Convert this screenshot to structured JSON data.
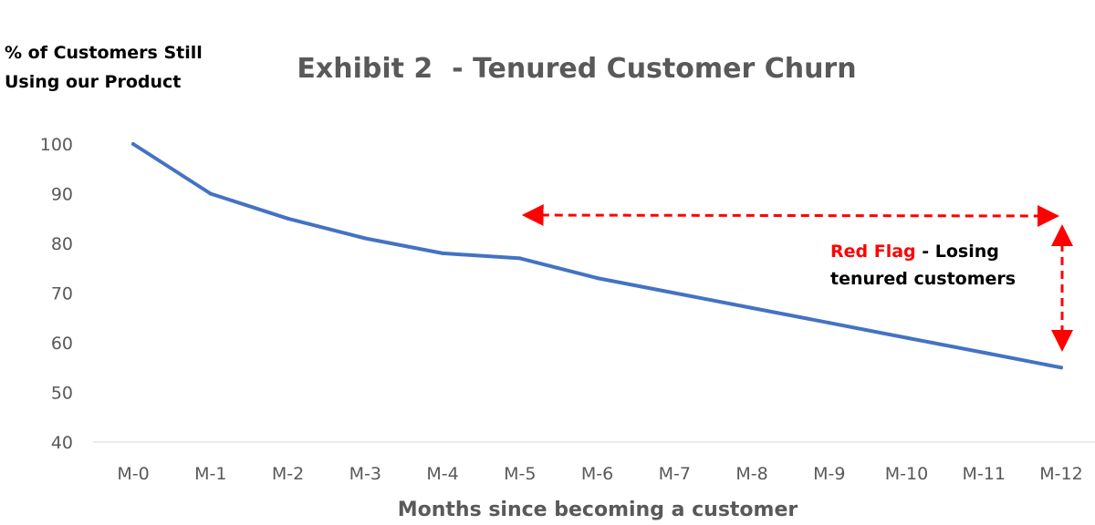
{
  "chart_data": {
    "type": "line",
    "title": "Exhibit 2  - Tenured Customer Churn",
    "ylabel_lines": [
      "% of Customers Still",
      "Using our Product"
    ],
    "xlabel": "Months since becoming a customer",
    "categories": [
      "M-0",
      "M-1",
      "M-2",
      "M-3",
      "M-4",
      "M-5",
      "M-6",
      "M-7",
      "M-8",
      "M-9",
      "M-10",
      "M-11",
      "M-12"
    ],
    "series": [
      {
        "values": [
          100,
          90,
          85,
          81,
          78,
          77,
          73,
          70,
          67,
          64,
          61,
          58,
          55
        ],
        "color": "#4472C4"
      }
    ],
    "ylim": [
      40,
      100
    ],
    "yticks": [
      40,
      50,
      60,
      70,
      80,
      90,
      100
    ],
    "grid": false,
    "annotation": {
      "highlight": "Red Flag",
      "text_line1": " - Losing",
      "text_line2": "tenured customers",
      "color": "#FF0000",
      "arrow_start_category": "M-5",
      "arrow_end_category": "M-12"
    }
  }
}
